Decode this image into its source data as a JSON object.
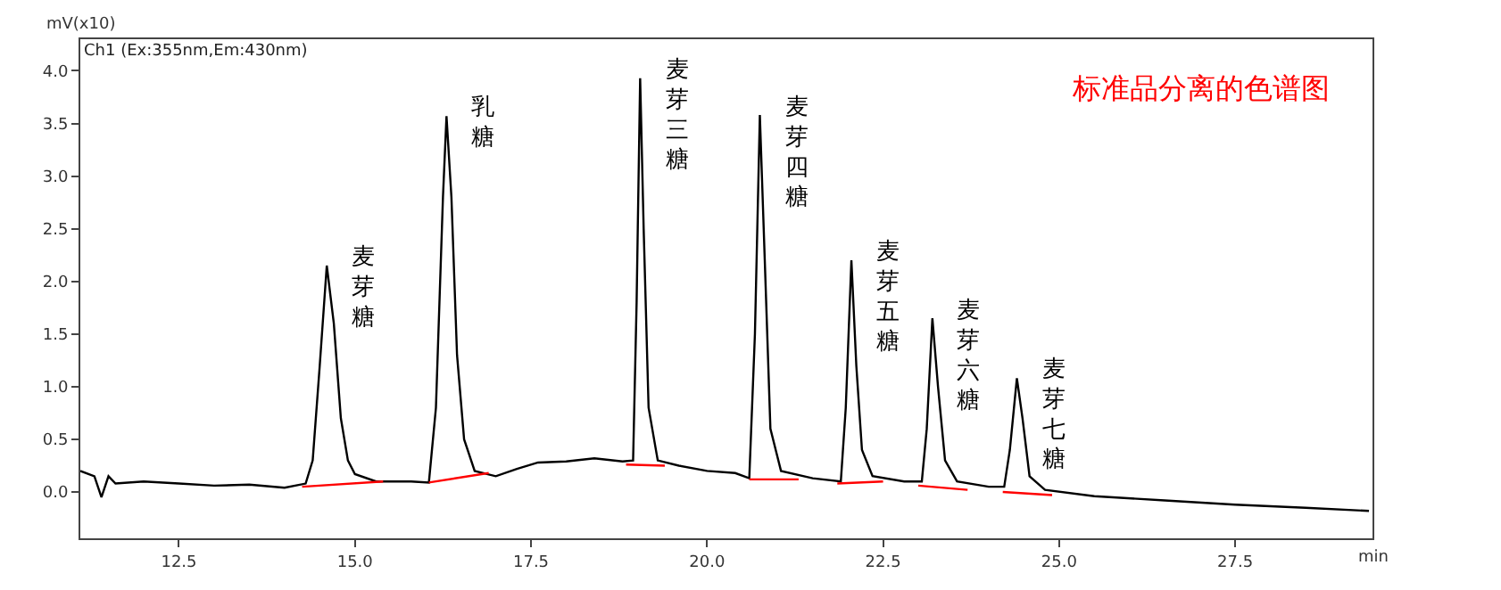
{
  "chart_data": {
    "type": "line",
    "title": "标准品分离的色谱图",
    "ylabel": "mV(x10)",
    "xlabel": "min",
    "annotations": [
      "Ch1 (Ex:355nm,Em:430nm)",
      {
        "text": "麦芽糖",
        "x": 14.6,
        "y": 2.15
      },
      {
        "text": "乳糖",
        "x": 16.3,
        "y": 3.57
      },
      {
        "text": "麦芽三糖",
        "x": 19.05,
        "y": 3.93
      },
      {
        "text": "麦芽四糖",
        "x": 20.75,
        "y": 3.58
      },
      {
        "text": "麦芽五糖",
        "x": 22.05,
        "y": 2.2
      },
      {
        "text": "麦芽六糖",
        "x": 23.2,
        "y": 1.65
      },
      {
        "text": "麦芽七糖",
        "x": 24.4,
        "y": 1.08
      }
    ],
    "series": [
      {
        "color": "#000000",
        "x": [
          11.1,
          11.3,
          11.4,
          11.5,
          11.6,
          12.0,
          12.5,
          13.0,
          13.5,
          14.0,
          14.3,
          14.4,
          14.5,
          14.6,
          14.7,
          14.8,
          14.9,
          15.0,
          15.3,
          15.8,
          16.05,
          16.15,
          16.25,
          16.3,
          16.37,
          16.45,
          16.55,
          16.7,
          17.0,
          17.3,
          17.6,
          18.0,
          18.4,
          18.8,
          18.95,
          19.0,
          19.05,
          19.1,
          19.17,
          19.3,
          19.6,
          20.0,
          20.4,
          20.6,
          20.68,
          20.75,
          20.82,
          20.9,
          21.05,
          21.5,
          21.9,
          21.97,
          22.05,
          22.12,
          22.2,
          22.35,
          22.8,
          23.05,
          23.12,
          23.2,
          23.28,
          23.38,
          23.55,
          24.0,
          24.22,
          24.3,
          24.4,
          24.48,
          24.58,
          24.8,
          25.5,
          26.5,
          27.5,
          28.5,
          29.4
        ],
        "values": [
          0.2,
          0.15,
          -0.05,
          0.15,
          0.08,
          0.1,
          0.08,
          0.06,
          0.07,
          0.04,
          0.08,
          0.3,
          1.2,
          2.15,
          1.6,
          0.7,
          0.3,
          0.17,
          0.1,
          0.1,
          0.09,
          0.8,
          2.8,
          3.57,
          2.8,
          1.3,
          0.5,
          0.2,
          0.15,
          0.22,
          0.28,
          0.29,
          0.32,
          0.29,
          0.3,
          1.8,
          3.93,
          2.5,
          0.8,
          0.3,
          0.25,
          0.2,
          0.18,
          0.13,
          1.5,
          3.58,
          2.2,
          0.6,
          0.2,
          0.13,
          0.1,
          0.8,
          2.2,
          1.2,
          0.4,
          0.15,
          0.1,
          0.1,
          0.6,
          1.65,
          1.0,
          0.3,
          0.1,
          0.05,
          0.05,
          0.4,
          1.08,
          0.7,
          0.15,
          0.02,
          -0.04,
          -0.08,
          -0.12,
          -0.15,
          -0.18
        ]
      },
      {
        "color": "#ff0000",
        "x": [
          14.25,
          15.4,
          15.5,
          16.05,
          16.9,
          17.0,
          18.85,
          19.4,
          19.5,
          20.6,
          21.3,
          21.5,
          21.85,
          22.5,
          22.7,
          23.0,
          23.7,
          23.9,
          24.2,
          24.9
        ],
        "values": [
          0.05,
          0.1,
          null,
          0.09,
          0.18,
          null,
          0.26,
          0.25,
          null,
          0.12,
          0.12,
          null,
          0.08,
          0.1,
          null,
          0.06,
          0.02,
          null,
          0.0,
          -0.03
        ]
      }
    ],
    "xlim": [
      11.1,
      29.45
    ],
    "ylim": [
      -0.44,
      4.3
    ],
    "xticks": [
      {
        "value": 12.5,
        "label": "12.5"
      },
      {
        "value": 15,
        "label": "15.0"
      },
      {
        "value": 17.5,
        "label": "17.5"
      },
      {
        "value": 20,
        "label": "20.0"
      },
      {
        "value": 22.5,
        "label": "22.5"
      },
      {
        "value": 25,
        "label": "25.0"
      },
      {
        "value": 27.5,
        "label": "27.5"
      }
    ],
    "yticks": [
      {
        "value": 0,
        "label": "0.0"
      },
      0.5,
      {
        "value": 1,
        "label": "1.0"
      },
      1.5,
      {
        "value": 2,
        "label": "2.0"
      },
      2.5,
      {
        "value": 3,
        "label": "3.0"
      },
      3.5,
      {
        "value": 4,
        "label": "4.0"
      }
    ],
    "grid": false,
    "marker": "none",
    "line_style": "solid"
  }
}
